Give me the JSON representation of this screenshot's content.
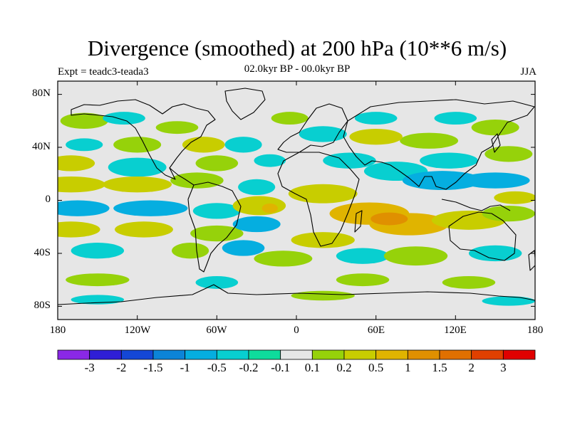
{
  "figure": {
    "title": "Divergence (smoothed) at 200 hPa (10**6 m/s)",
    "subtitle": "02.0kyr BP - 00.0kyr BP",
    "experiment": "Expt = teadc3-teada3",
    "season": "JJA"
  },
  "axes": {
    "lat_ticks": [
      "80N",
      "40N",
      "0",
      "40S",
      "80S"
    ],
    "lat_values": [
      80,
      40,
      0,
      -40,
      -80
    ],
    "lon_ticks": [
      "180",
      "120W",
      "60W",
      "0",
      "60E",
      "120E",
      "180"
    ],
    "lon_values": [
      -180,
      -120,
      -60,
      0,
      60,
      120,
      180
    ]
  },
  "colorbar": {
    "labels": [
      "-3",
      "-2",
      "-1.5",
      "-1",
      "-0.5",
      "-0.2",
      "-0.1",
      "0.1",
      "0.2",
      "0.5",
      "1",
      "1.5",
      "2",
      "3"
    ],
    "colors": [
      "#8a28e6",
      "#2f1ed6",
      "#1447d6",
      "#0c84d8",
      "#05aee0",
      "#08cfd0",
      "#0edc9c",
      "#e6e6e6",
      "#96d20a",
      "#c8cd00",
      "#e0b400",
      "#e09000",
      "#e07000",
      "#e04000",
      "#e00000"
    ]
  },
  "chart_data": {
    "type": "heatmap",
    "title": "Divergence (smoothed) at 200 hPa (10**6 m/s)",
    "variable": "200 hPa divergence difference",
    "units": "10**6 m/s",
    "levels": [
      -3,
      -2,
      -1.5,
      -1,
      -0.5,
      -0.2,
      -0.1,
      0.1,
      0.2,
      0.5,
      1,
      1.5,
      2,
      3
    ],
    "lon_range": [
      -180,
      180
    ],
    "lat_range": [
      -90,
      90
    ],
    "features": [
      {
        "name": "tropical-pacific-positive-band",
        "lon": -120,
        "lat": 8,
        "value": 0.5
      },
      {
        "name": "south-pacific-negative-band",
        "lon": -120,
        "lat": -12,
        "value": -0.5
      },
      {
        "name": "atlantic-positive-max",
        "lon": -20,
        "lat": -5,
        "value": 1
      },
      {
        "name": "indian-ocean-positive-max",
        "lon": 75,
        "lat": -15,
        "value": 1
      },
      {
        "name": "asian-monsoon-negative-band",
        "lon": 110,
        "lat": 15,
        "value": -0.5
      },
      {
        "name": "southern-ocean-mixed",
        "lon": 30,
        "lat": -40,
        "value": 0.2
      }
    ]
  }
}
